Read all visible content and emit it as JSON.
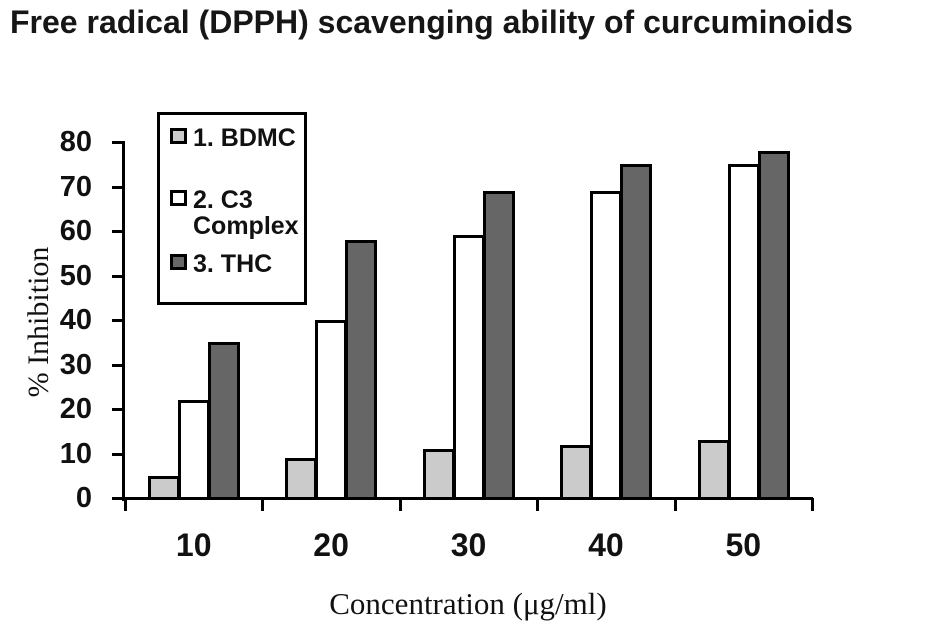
{
  "page": {
    "background": "#FFFFFF"
  },
  "chart_data": {
    "type": "bar",
    "title": "Free radical (DPPH) scavenging ability of curcuminoids",
    "xlabel": "Concentration (μg/ml)",
    "ylabel": "% Inhibition",
    "categories": [
      "10",
      "20",
      "30",
      "40",
      "50"
    ],
    "series": [
      {
        "name": "1. BDMC",
        "color": "#CBCBCB",
        "values": [
          5,
          9,
          11,
          12,
          13
        ]
      },
      {
        "name": "2. C3 Complex",
        "color": "#FFFFFF",
        "values": [
          22,
          40,
          59,
          69,
          75
        ]
      },
      {
        "name": "3. THC",
        "color": "#666666",
        "values": [
          35,
          58,
          69,
          75,
          78
        ]
      }
    ],
    "ylim": [
      0,
      80
    ],
    "ytick_step": 10,
    "grid": false,
    "legend_position": "inside-top-left",
    "axis_color": "#000000",
    "bar_border_color": "#000000",
    "text_color": "#111111"
  }
}
